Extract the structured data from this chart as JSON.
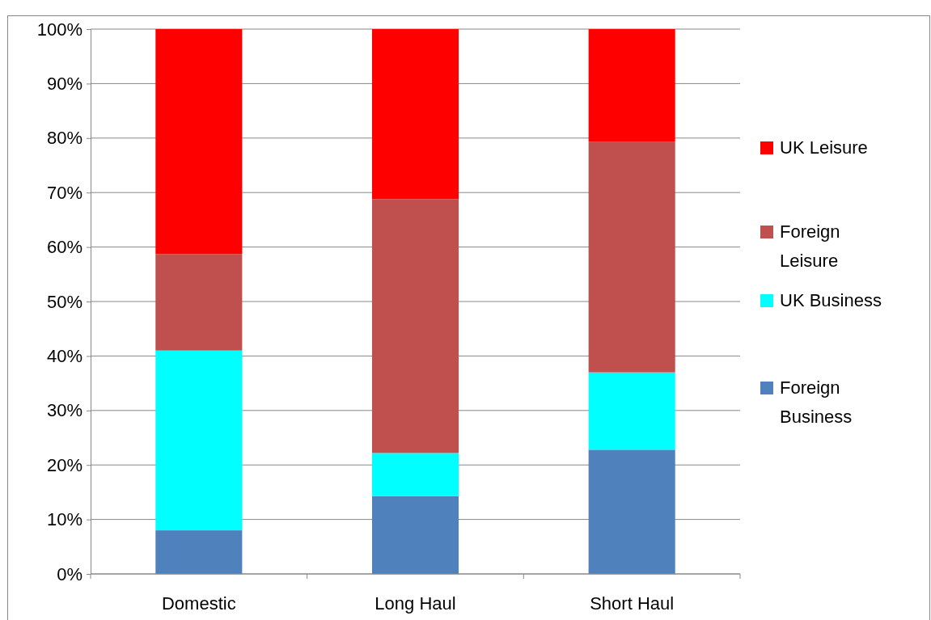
{
  "chart_data": {
    "type": "bar",
    "stacked": true,
    "categories": [
      "Domestic",
      "Long Haul",
      "Short Haul"
    ],
    "series": [
      {
        "name": "Foreign Business",
        "color": "#4f81bd",
        "values": [
          8,
          14.3,
          22.8
        ]
      },
      {
        "name": "UK Business",
        "color": "#00ffff",
        "values": [
          33,
          7.9,
          14.2
        ]
      },
      {
        "name": "Foreign Leisure",
        "color": "#c0504d",
        "values": [
          17.7,
          46.6,
          42.3
        ]
      },
      {
        "name": "UK Leisure",
        "color": "#ff0000",
        "values": [
          41.3,
          31.2,
          20.7
        ]
      }
    ],
    "ylim": [
      0,
      100
    ],
    "yticks": [
      {
        "value": 0,
        "label": "0%"
      },
      {
        "value": 10,
        "label": "10%"
      },
      {
        "value": 20,
        "label": "20%"
      },
      {
        "value": 30,
        "label": "30%"
      },
      {
        "value": 40,
        "label": "40%"
      },
      {
        "value": 50,
        "label": "50%"
      },
      {
        "value": 60,
        "label": "60%"
      },
      {
        "value": 70,
        "label": "70%"
      },
      {
        "value": 80,
        "label": "80%"
      },
      {
        "value": 90,
        "label": "90%"
      },
      {
        "value": 100,
        "label": "100%"
      }
    ],
    "grid": "y",
    "legend": "right"
  }
}
